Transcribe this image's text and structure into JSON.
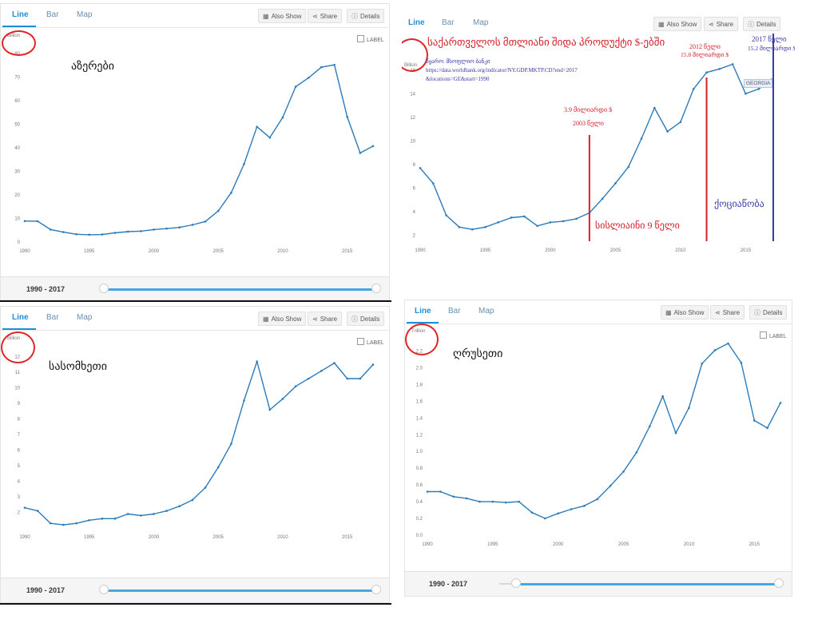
{
  "tabs": [
    "Line",
    "Bar",
    "Map"
  ],
  "buttons": {
    "also_show": "Also Show",
    "share": "Share",
    "details": "Details"
  },
  "label_checkbox": "LABEL",
  "range": "1990 - 2017",
  "icons": {
    "also_show": "grid-icon",
    "share": "share-icon",
    "details": "info-icon",
    "checkbox": "checkbox-icon",
    "slider": "slider-knob-icon"
  },
  "colors": {
    "line": "#2b7bba",
    "accent": "#1d8fd6",
    "annotation_red": "#d4202a",
    "annotation_blue": "#3a3aa8",
    "circle": "#e02525"
  },
  "panels": {
    "azerbaijan": {
      "unit": "Billion",
      "country": "აზერები"
    },
    "georgia": {
      "unit": "Billion",
      "title": "საქართველოს მთლიანი შიდა პროდუქტი $-ებში",
      "source_line1": "წყარო: მსოფლიო ბანკი",
      "source_line2": "https://data.worldbank.org/indicator/NY.GDP.MKTP.CD?end=2017",
      "source_line3": "&locations=GE&start=1990",
      "badge": "GEORGIA",
      "ann_2003_value": "3.9 მილიარდი $",
      "ann_2003_year": "2003 წელი",
      "ann_2012_year": "2012 წელი",
      "ann_2012_value": "15.8 მილიარდი $",
      "ann_2017_year": "2017 წელი",
      "ann_2017_value": "15.2 მილიარდი $",
      "ann_9years": "სისლიაინი 9 წელი",
      "ann_koba": "ქოციაწობა"
    },
    "armenia": {
      "unit": "Billion",
      "country": "სასომხეთი"
    },
    "russia": {
      "unit": "Trillion",
      "country": "ღრუსეთი"
    }
  },
  "chart_data": [
    {
      "type": "line",
      "x": [
        1990,
        1991,
        1992,
        1993,
        1994,
        1995,
        1996,
        1997,
        1998,
        1999,
        2000,
        2001,
        2002,
        2003,
        2004,
        2005,
        2006,
        2007,
        2008,
        2009,
        2010,
        2011,
        2012,
        2013,
        2014,
        2015,
        2016,
        2017
      ],
      "values": [
        8.9,
        8.8,
        5.3,
        4.2,
        3.3,
        3.1,
        3.2,
        3.9,
        4.4,
        4.6,
        5.3,
        5.7,
        6.2,
        7.3,
        8.7,
        13.2,
        20.9,
        33.1,
        48.9,
        44.3,
        52.9,
        65.9,
        69.7,
        74.2,
        75.2,
        53.1,
        37.8,
        40.7
      ],
      "ylim": [
        0,
        80
      ],
      "y_ticks": [
        0,
        10,
        20,
        30,
        40,
        50,
        60,
        70,
        80
      ],
      "x_ticks": [
        1990,
        1995,
        2000,
        2005,
        2010,
        2015
      ]
    },
    {
      "type": "line",
      "x": [
        1990,
        1991,
        1992,
        1993,
        1994,
        1995,
        1996,
        1997,
        1998,
        1999,
        2000,
        2001,
        2002,
        2003,
        2004,
        2005,
        2006,
        2007,
        2008,
        2009,
        2010,
        2011,
        2012,
        2013,
        2014,
        2015,
        2016,
        2017
      ],
      "values": [
        7.7,
        6.4,
        3.7,
        2.7,
        2.5,
        2.7,
        3.1,
        3.5,
        3.6,
        2.8,
        3.1,
        3.2,
        3.4,
        3.9,
        5.1,
        6.4,
        7.8,
        10.2,
        12.8,
        10.8,
        11.6,
        14.4,
        15.8,
        16.1,
        16.5,
        14.0,
        14.4,
        15.2
      ],
      "ylim": [
        1.5,
        17
      ],
      "y_ticks": [
        2,
        4,
        6,
        8,
        10,
        12,
        14,
        16
      ],
      "x_ticks": [
        1990,
        1995,
        2000,
        2005,
        2010,
        2015
      ],
      "markers": [
        2003,
        2012,
        2017
      ]
    },
    {
      "type": "line",
      "x": [
        1990,
        1991,
        1992,
        1993,
        1994,
        1995,
        1996,
        1997,
        1998,
        1999,
        2000,
        2001,
        2002,
        2003,
        2004,
        2005,
        2006,
        2007,
        2008,
        2009,
        2010,
        2011,
        2012,
        2013,
        2014,
        2015,
        2016,
        2017
      ],
      "values": [
        2.3,
        2.1,
        1.3,
        1.2,
        1.3,
        1.5,
        1.6,
        1.6,
        1.9,
        1.8,
        1.9,
        2.1,
        2.4,
        2.8,
        3.6,
        4.9,
        6.4,
        9.2,
        11.7,
        8.6,
        9.3,
        10.1,
        10.6,
        11.1,
        11.6,
        10.6,
        10.6,
        11.5
      ],
      "ylim": [
        1,
        12.5
      ],
      "y_ticks": [
        2,
        3,
        4,
        5,
        6,
        7,
        8,
        9,
        10,
        11,
        12
      ],
      "x_ticks": [
        1990,
        1995,
        2000,
        2005,
        2010,
        2015
      ]
    },
    {
      "type": "line",
      "x": [
        1990,
        1991,
        1992,
        1993,
        1994,
        1995,
        1996,
        1997,
        1998,
        1999,
        2000,
        2001,
        2002,
        2003,
        2004,
        2005,
        2006,
        2007,
        2008,
        2009,
        2010,
        2011,
        2012,
        2013,
        2014,
        2015,
        2016,
        2017
      ],
      "values": [
        0.52,
        0.52,
        0.46,
        0.44,
        0.4,
        0.4,
        0.39,
        0.4,
        0.27,
        0.2,
        0.26,
        0.31,
        0.35,
        0.43,
        0.59,
        0.76,
        0.99,
        1.3,
        1.66,
        1.22,
        1.52,
        2.05,
        2.21,
        2.29,
        2.06,
        1.37,
        1.28,
        1.58
      ],
      "ylim": [
        0,
        2.3
      ],
      "y_ticks": [
        0.0,
        0.2,
        0.4,
        0.6,
        0.8,
        1.0,
        1.2,
        1.4,
        1.6,
        1.8,
        2.0,
        2.2
      ],
      "x_ticks": [
        1990,
        1995,
        2000,
        2005,
        2010,
        2015
      ]
    }
  ]
}
